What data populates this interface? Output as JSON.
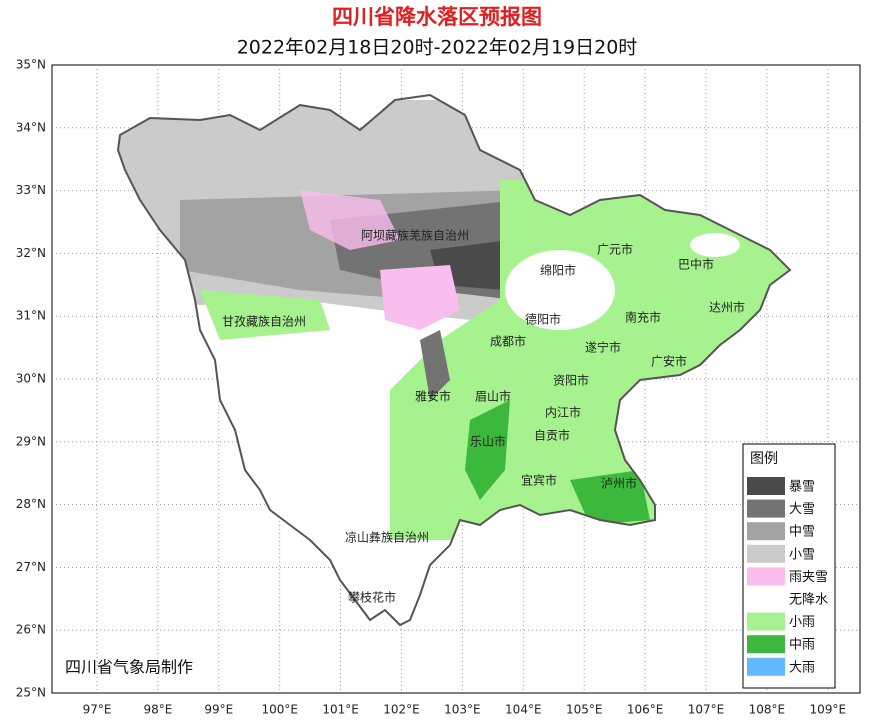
{
  "header": {
    "title": "四川省降水落区预报图",
    "subtitle": "2022年02月18日20时-2022年02月19日20时"
  },
  "axes": {
    "lat_labels": [
      "35°N",
      "34°N",
      "33°N",
      "32°N",
      "31°N",
      "30°N",
      "29°N",
      "28°N",
      "27°N",
      "26°N",
      "25°N"
    ],
    "lon_labels": [
      "97°E",
      "98°E",
      "99°E",
      "100°E",
      "101°E",
      "102°E",
      "103°E",
      "104°E",
      "105°E",
      "106°E",
      "107°E",
      "108°E",
      "109°E"
    ]
  },
  "places": [
    "阿坝藏族羌族自治州",
    "绵阳市",
    "广元市",
    "巴中市",
    "甘孜藏族自治州",
    "德阳市",
    "南充市",
    "达州市",
    "成都市",
    "遂宁市",
    "广安市",
    "资阳市",
    "雅安市",
    "眉山市",
    "内江市",
    "乐山市",
    "自贡市",
    "宜宾市",
    "泸州市",
    "凉山彝族自治州",
    "攀枝花市"
  ],
  "legend": {
    "title": "图例",
    "items": [
      {
        "label": "暴雪",
        "color": "#4a4a4a"
      },
      {
        "label": "大雪",
        "color": "#737373"
      },
      {
        "label": "中雪",
        "color": "#a3a3a3"
      },
      {
        "label": "小雪",
        "color": "#cbcbcb"
      },
      {
        "label": "雨夹雪",
        "color": "#f9bdee"
      },
      {
        "label": "无降水",
        "color": "#ffffff"
      },
      {
        "label": "小雨",
        "color": "#a6f28f"
      },
      {
        "label": "中雨",
        "color": "#3cb93c"
      },
      {
        "label": "大雨",
        "color": "#61b8ff"
      }
    ]
  },
  "footer": {
    "credit": "四川省气象局制作"
  }
}
